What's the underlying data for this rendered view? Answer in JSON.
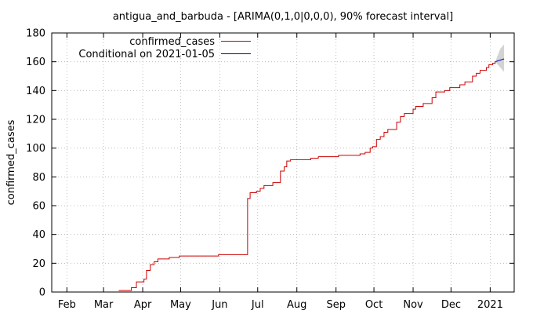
{
  "chart_data": {
    "type": "line",
    "title": "antigua_and_barbuda -  [ARIMA(0,1,0|0,0,0), 90% forecast interval]",
    "xlabel": "",
    "ylabel": "confirmed_cases",
    "ylim": [
      0,
      180
    ],
    "xlim": [
      "2020-01-20",
      "2021-01-20"
    ],
    "yticks": [
      0,
      20,
      40,
      60,
      80,
      100,
      120,
      140,
      160,
      180
    ],
    "xticks": [
      {
        "label": "Feb",
        "date": "2020-02-01"
      },
      {
        "label": "Mar",
        "date": "2020-03-01"
      },
      {
        "label": "Apr",
        "date": "2020-04-01"
      },
      {
        "label": "May",
        "date": "2020-05-01"
      },
      {
        "label": "Jun",
        "date": "2020-06-01"
      },
      {
        "label": "Jul",
        "date": "2020-07-01"
      },
      {
        "label": "Aug",
        "date": "2020-08-01"
      },
      {
        "label": "Sep",
        "date": "2020-09-01"
      },
      {
        "label": "Oct",
        "date": "2020-10-01"
      },
      {
        "label": "Nov",
        "date": "2020-11-01"
      },
      {
        "label": "Dec",
        "date": "2020-12-01"
      },
      {
        "label": "2021",
        "date": "2021-01-01"
      }
    ],
    "grid": true,
    "legend_position": "top-left",
    "series": [
      {
        "name": "confirmed_cases",
        "color": "#cc0000",
        "style": "step",
        "points": [
          [
            "2020-03-13",
            1
          ],
          [
            "2020-03-23",
            3
          ],
          [
            "2020-03-27",
            7
          ],
          [
            "2020-04-02",
            9
          ],
          [
            "2020-04-04",
            15
          ],
          [
            "2020-04-07",
            19
          ],
          [
            "2020-04-10",
            21
          ],
          [
            "2020-04-13",
            23
          ],
          [
            "2020-04-22",
            24
          ],
          [
            "2020-04-30",
            25
          ],
          [
            "2020-05-31",
            26
          ],
          [
            "2020-06-23",
            65
          ],
          [
            "2020-06-25",
            69
          ],
          [
            "2020-06-30",
            70
          ],
          [
            "2020-07-03",
            72
          ],
          [
            "2020-07-06",
            74
          ],
          [
            "2020-07-13",
            76
          ],
          [
            "2020-07-19",
            84
          ],
          [
            "2020-07-22",
            87
          ],
          [
            "2020-07-24",
            91
          ],
          [
            "2020-07-27",
            92
          ],
          [
            "2020-08-12",
            93
          ],
          [
            "2020-08-18",
            94
          ],
          [
            "2020-09-01",
            94
          ],
          [
            "2020-09-03",
            95
          ],
          [
            "2020-09-20",
            96
          ],
          [
            "2020-09-24",
            97
          ],
          [
            "2020-09-28",
            100
          ],
          [
            "2020-09-30",
            101
          ],
          [
            "2020-10-03",
            106
          ],
          [
            "2020-10-06",
            108
          ],
          [
            "2020-10-09",
            111
          ],
          [
            "2020-10-12",
            113
          ],
          [
            "2020-10-19",
            118
          ],
          [
            "2020-10-22",
            122
          ],
          [
            "2020-10-25",
            124
          ],
          [
            "2020-11-01",
            127
          ],
          [
            "2020-11-03",
            129
          ],
          [
            "2020-11-09",
            131
          ],
          [
            "2020-11-16",
            135
          ],
          [
            "2020-11-19",
            139
          ],
          [
            "2020-11-26",
            140
          ],
          [
            "2020-11-30",
            142
          ],
          [
            "2020-12-08",
            144
          ],
          [
            "2020-12-12",
            146
          ],
          [
            "2020-12-18",
            150
          ],
          [
            "2020-12-21",
            152
          ],
          [
            "2020-12-24",
            154
          ],
          [
            "2020-12-29",
            156
          ],
          [
            "2020-12-31",
            158
          ],
          [
            "2021-01-03",
            159
          ],
          [
            "2021-01-05",
            160
          ]
        ]
      },
      {
        "name": "Conditional on 2021-01-05",
        "color": "#0000cc",
        "style": "line",
        "points": [
          [
            "2021-01-05",
            160
          ],
          [
            "2021-01-12",
            162
          ]
        ],
        "interval_upper": [
          [
            "2021-01-05",
            160
          ],
          [
            "2021-01-09",
            169
          ],
          [
            "2021-01-12",
            172
          ]
        ],
        "interval_lower": [
          [
            "2021-01-05",
            160
          ],
          [
            "2021-01-09",
            156
          ],
          [
            "2021-01-12",
            153
          ]
        ]
      }
    ]
  }
}
